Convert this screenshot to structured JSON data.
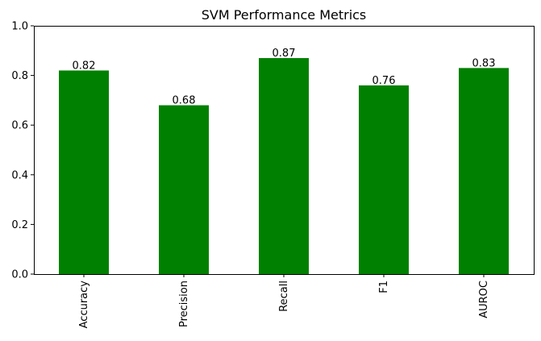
{
  "chart_data": {
    "type": "bar",
    "title": "SVM Performance Metrics",
    "xlabel": "",
    "ylabel": "",
    "categories": [
      "Accuracy",
      "Precision",
      "Recall",
      "F1",
      "AUROC"
    ],
    "values": [
      0.82,
      0.68,
      0.87,
      0.76,
      0.83
    ],
    "data_labels": [
      "0.82",
      "0.68",
      "0.87",
      "0.76",
      "0.83"
    ],
    "ylim": [
      0,
      1.0
    ],
    "yticks": [
      0.0,
      0.2,
      0.4,
      0.6,
      0.8,
      1.0
    ],
    "ytick_labels": [
      "0.0",
      "0.2",
      "0.4",
      "0.6",
      "0.8",
      "1.0"
    ],
    "bar_color": "#008000",
    "grid": false,
    "legend": false
  }
}
